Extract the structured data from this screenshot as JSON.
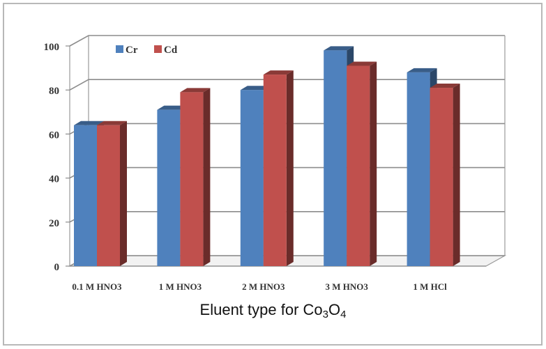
{
  "chart_data": {
    "type": "bar",
    "categories": [
      "0.1 M HNO3",
      "1 M HNO3",
      "2 M HNO3",
      "3 M HNO3",
      "1 M HCl"
    ],
    "series": [
      {
        "name": "Cr",
        "values": [
          64,
          71,
          80,
          98,
          88
        ],
        "color": "#4f81bd"
      },
      {
        "name": "Cd",
        "values": [
          64,
          79,
          87,
          91,
          81
        ],
        "color": "#c0504d"
      }
    ],
    "ylim": [
      0,
      100
    ],
    "yticks": [
      "0",
      "20",
      "40",
      "60",
      "80",
      "100"
    ],
    "xlabel": {
      "prefix": "Eluent type for Co",
      "sub1": "3",
      "mid": "O",
      "sub2": "4"
    },
    "ylabel": "",
    "grid": true,
    "legend": "top-left",
    "style": "3d-clustered-column"
  }
}
